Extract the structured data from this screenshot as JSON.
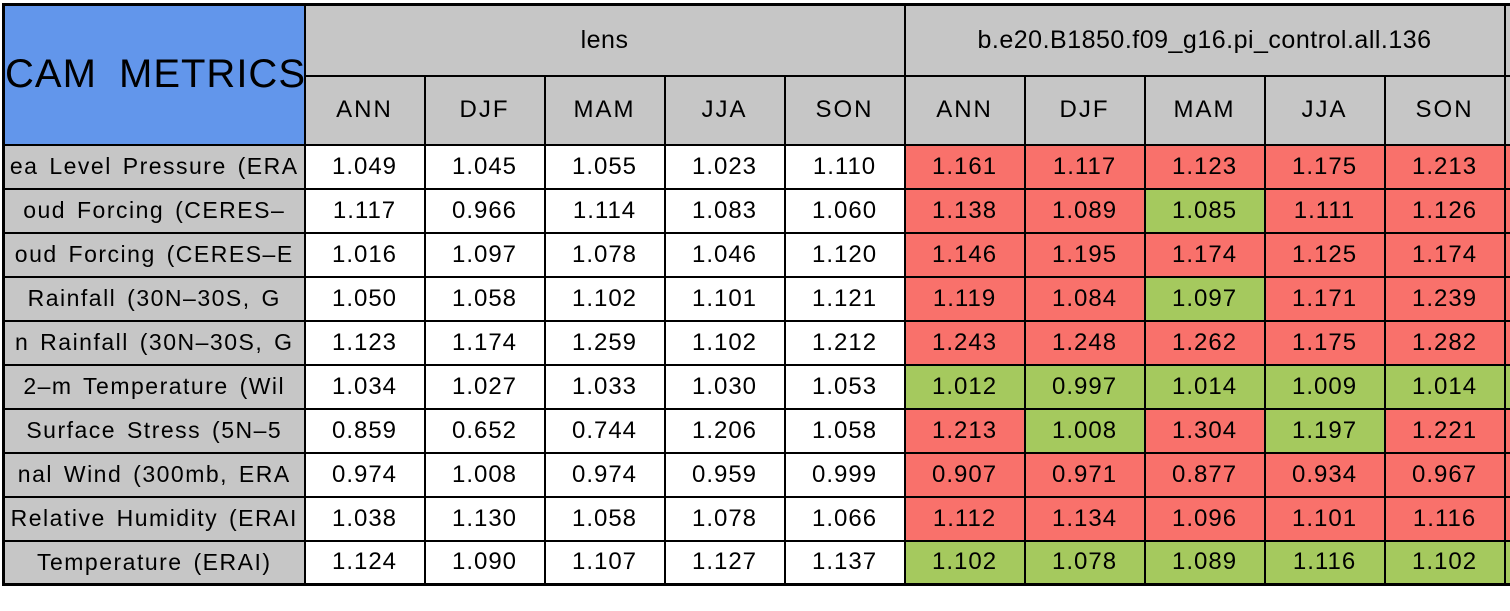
{
  "chart_data": {
    "type": "table",
    "title": "CAM METRICS",
    "column_groups": [
      {
        "label": "lens"
      },
      {
        "label": "b.e20.B1850.f09_g16.pi_control.all.136"
      }
    ],
    "season_columns": [
      "ANN",
      "DJF",
      "MAM",
      "JJA",
      "SON"
    ],
    "rows": [
      {
        "metric": "ea Level Pressure (ERA",
        "lens": [
          "1.049",
          "1.045",
          "1.055",
          "1.023",
          "1.110"
        ],
        "control": [
          "1.161",
          "1.117",
          "1.123",
          "1.175",
          "1.213"
        ],
        "control_cell_colors": [
          "red",
          "red",
          "red",
          "red",
          "red"
        ],
        "next_column_sliver_color": "red"
      },
      {
        "metric": "oud Forcing (CERES–",
        "lens": [
          "1.117",
          "0.966",
          "1.114",
          "1.083",
          "1.060"
        ],
        "control": [
          "1.138",
          "1.089",
          "1.085",
          "1.111",
          "1.126"
        ],
        "control_cell_colors": [
          "red",
          "red",
          "green",
          "red",
          "red"
        ],
        "next_column_sliver_color": "red"
      },
      {
        "metric": "oud Forcing (CERES–E",
        "lens": [
          "1.016",
          "1.097",
          "1.078",
          "1.046",
          "1.120"
        ],
        "control": [
          "1.146",
          "1.195",
          "1.174",
          "1.125",
          "1.174"
        ],
        "control_cell_colors": [
          "red",
          "red",
          "red",
          "red",
          "red"
        ],
        "next_column_sliver_color": "red"
      },
      {
        "metric": "Rainfall (30N–30S, G",
        "lens": [
          "1.050",
          "1.058",
          "1.102",
          "1.101",
          "1.121"
        ],
        "control": [
          "1.119",
          "1.084",
          "1.097",
          "1.171",
          "1.239"
        ],
        "control_cell_colors": [
          "red",
          "red",
          "green",
          "red",
          "red"
        ],
        "next_column_sliver_color": "red"
      },
      {
        "metric": "n Rainfall (30N–30S, G",
        "lens": [
          "1.123",
          "1.174",
          "1.259",
          "1.102",
          "1.212"
        ],
        "control": [
          "1.243",
          "1.248",
          "1.262",
          "1.175",
          "1.282"
        ],
        "control_cell_colors": [
          "red",
          "red",
          "red",
          "red",
          "red"
        ],
        "next_column_sliver_color": "red"
      },
      {
        "metric": "2–m Temperature (Wil",
        "lens": [
          "1.034",
          "1.027",
          "1.033",
          "1.030",
          "1.053"
        ],
        "control": [
          "1.012",
          "0.997",
          "1.014",
          "1.009",
          "1.014"
        ],
        "control_cell_colors": [
          "green",
          "green",
          "green",
          "green",
          "green"
        ],
        "next_column_sliver_color": "green"
      },
      {
        "metric": "Surface Stress (5N–5",
        "lens": [
          "0.859",
          "0.652",
          "0.744",
          "1.206",
          "1.058"
        ],
        "control": [
          "1.213",
          "1.008",
          "1.304",
          "1.197",
          "1.221"
        ],
        "control_cell_colors": [
          "red",
          "green",
          "red",
          "green",
          "red"
        ],
        "next_column_sliver_color": "red"
      },
      {
        "metric": "nal Wind (300mb, ERA",
        "lens": [
          "0.974",
          "1.008",
          "0.974",
          "0.959",
          "0.999"
        ],
        "control": [
          "0.907",
          "0.971",
          "0.877",
          "0.934",
          "0.967"
        ],
        "control_cell_colors": [
          "red",
          "red",
          "red",
          "red",
          "red"
        ],
        "next_column_sliver_color": "red"
      },
      {
        "metric": "Relative Humidity (ERAI",
        "lens": [
          "1.038",
          "1.130",
          "1.058",
          "1.078",
          "1.066"
        ],
        "control": [
          "1.112",
          "1.134",
          "1.096",
          "1.101",
          "1.116"
        ],
        "control_cell_colors": [
          "red",
          "red",
          "red",
          "red",
          "red"
        ],
        "next_column_sliver_color": "red"
      },
      {
        "metric": "Temperature (ERAI)",
        "lens": [
          "1.124",
          "1.090",
          "1.107",
          "1.127",
          "1.137"
        ],
        "control": [
          "1.102",
          "1.078",
          "1.089",
          "1.116",
          "1.102"
        ],
        "control_cell_colors": [
          "green",
          "green",
          "green",
          "green",
          "green"
        ],
        "next_column_sliver_color": "green"
      }
    ],
    "colors": {
      "title_cell_blue": "#6296EB",
      "header_gray": "#C6C6C6",
      "worse_red": "#F9716B",
      "better_green": "#A5C95E",
      "lens_cell_white": "#FFFFFF",
      "border_black": "#000000"
    }
  }
}
